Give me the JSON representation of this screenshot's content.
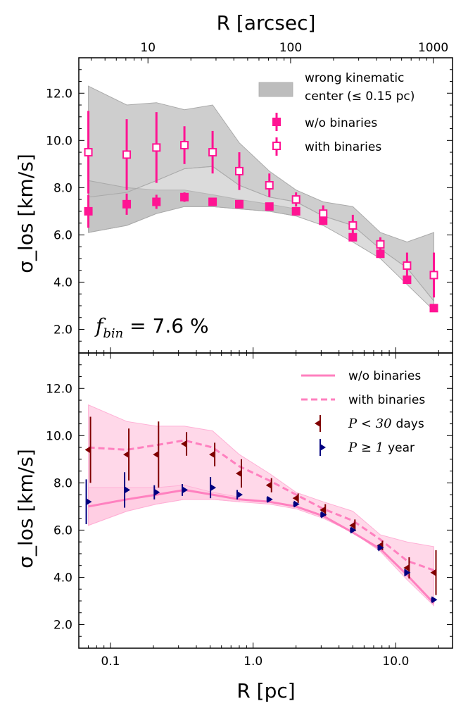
{
  "colors": {
    "magenta": "#ff1493",
    "pink_line": "#ff80bf",
    "pink_band": "#ffc8e0",
    "gray_band": "#bdbdbd",
    "dark_red": "#800000",
    "navy": "#000080"
  },
  "chart_data": [
    {
      "type": "scatter",
      "panel": "top",
      "xscale": "log",
      "xlim": [
        0.06,
        25
      ],
      "ylim": [
        1.0,
        13.5
      ],
      "ylabel": "σ_los [km/s]",
      "yticks": [
        2.0,
        4.0,
        6.0,
        8.0,
        10.0,
        12.0
      ],
      "top_axis": {
        "label": "R [arcsec]",
        "ticks": [
          10,
          100,
          1000
        ],
        "arcsec_per_pc": 54.6
      },
      "annotation": {
        "symbol": "f",
        "subscript": "bin",
        "text": " = 7.6 %"
      },
      "legend": {
        "band_label_line1": "wrong kinematic",
        "band_label_line2": "center (≤ 0.15 pc)",
        "filled_label": "w/o binaries",
        "open_label": "with binaries"
      },
      "band_upper": {
        "x": [
          0.07,
          0.13,
          0.21,
          0.33,
          0.52,
          0.8,
          1.3,
          2.0,
          3.1,
          5.0,
          7.8,
          12.0,
          18.5
        ],
        "y": [
          12.3,
          11.5,
          11.6,
          11.3,
          11.5,
          9.9,
          8.7,
          7.9,
          7.4,
          7.2,
          6.1,
          5.7,
          6.1
        ]
      },
      "band_middle": {
        "x": [
          0.07,
          0.13,
          0.21,
          0.33,
          0.52,
          0.8,
          1.3,
          2.0,
          3.1,
          5.0,
          7.8,
          12.0,
          18.5
        ],
        "y": [
          7.6,
          7.8,
          8.3,
          8.8,
          8.9,
          8.1,
          7.6,
          7.4,
          6.8,
          6.4,
          5.4,
          4.6,
          3.2
        ]
      },
      "band_lower": {
        "x": [
          0.07,
          0.13,
          0.21,
          0.33,
          0.52,
          0.8,
          1.3,
          2.0,
          3.1,
          5.0,
          7.8,
          12.0,
          18.5
        ],
        "y": [
          6.1,
          6.4,
          6.9,
          7.2,
          7.2,
          7.1,
          7.0,
          6.8,
          6.4,
          5.7,
          5.0,
          3.9,
          2.8
        ]
      },
      "band_inner_top": {
        "x": [
          0.07,
          0.13,
          0.21,
          0.33,
          0.52,
          0.8,
          1.3,
          2.0
        ],
        "y": [
          8.3,
          8.0,
          7.9,
          7.9,
          7.7,
          7.5,
          7.3,
          7.1
        ]
      },
      "series": [
        {
          "name": "w/o binaries",
          "marker": "filled-square",
          "x": [
            0.07,
            0.13,
            0.21,
            0.33,
            0.52,
            0.8,
            1.3,
            2.0,
            3.1,
            5.0,
            7.8,
            12.0,
            18.5
          ],
          "y": [
            7.0,
            7.3,
            7.4,
            7.6,
            7.4,
            7.3,
            7.2,
            7.0,
            6.6,
            5.9,
            5.2,
            4.1,
            2.9
          ],
          "err": [
            0.7,
            0.45,
            0.3,
            0.2,
            0.1,
            0.1,
            0.1,
            0.1,
            0.15,
            0.15,
            0.15,
            0.15,
            0.1
          ]
        },
        {
          "name": "with binaries",
          "marker": "open-square",
          "x": [
            0.07,
            0.13,
            0.21,
            0.33,
            0.52,
            0.8,
            1.3,
            2.0,
            3.1,
            5.0,
            7.8,
            12.0,
            18.5
          ],
          "y": [
            9.5,
            9.4,
            9.7,
            9.8,
            9.5,
            8.7,
            8.1,
            7.5,
            6.9,
            6.4,
            5.6,
            4.7,
            4.3
          ],
          "err": [
            1.75,
            1.5,
            1.5,
            0.8,
            0.9,
            0.8,
            0.5,
            0.3,
            0.35,
            0.45,
            0.3,
            0.55,
            0.95
          ]
        }
      ]
    },
    {
      "type": "line",
      "panel": "bottom",
      "xscale": "log",
      "xlim": [
        0.06,
        25
      ],
      "ylim": [
        1.0,
        13.5
      ],
      "xlabel": "R [pc]",
      "ylabel": "σ_los [km/s]",
      "xticks": [
        "0.1",
        "1.0",
        "10.0"
      ],
      "yticks": [
        2.0,
        4.0,
        6.0,
        8.0,
        10.0,
        12.0
      ],
      "legend": {
        "solid_label": "w/o binaries",
        "dashed_label": "with binaries",
        "red_label_symbol": "P < 30",
        "red_label_text": "days",
        "blue_label_symbol": "P ≥ 1",
        "blue_label_text": "year"
      },
      "band_upper": {
        "x": [
          0.07,
          0.13,
          0.21,
          0.33,
          0.52,
          0.8,
          1.3,
          2.0,
          3.1,
          5.0,
          7.8,
          12.0,
          18.5
        ],
        "y": [
          11.3,
          10.6,
          10.4,
          10.4,
          10.2,
          9.2,
          8.4,
          7.6,
          7.2,
          6.8,
          5.8,
          5.5,
          5.3
        ]
      },
      "band_lower": {
        "x": [
          0.07,
          0.13,
          0.21,
          0.33,
          0.52,
          0.8,
          1.3,
          2.0,
          3.1,
          5.0,
          7.8,
          12.0,
          18.5
        ],
        "y": [
          6.2,
          6.8,
          7.1,
          7.3,
          7.3,
          7.2,
          7.1,
          6.9,
          6.5,
          5.9,
          5.1,
          3.9,
          2.8
        ]
      },
      "band_inner_top": {
        "x": [
          0.07,
          0.13,
          0.21,
          0.33,
          0.52,
          0.8
        ],
        "y": [
          7.8,
          7.8,
          7.8,
          7.9,
          7.6,
          7.4
        ]
      },
      "series": [
        {
          "name": "w/o binaries",
          "style": "solid",
          "x": [
            0.07,
            0.13,
            0.21,
            0.33,
            0.52,
            0.8,
            1.3,
            2.0,
            3.1,
            5.0,
            7.8,
            12.0,
            18.5
          ],
          "y": [
            7.0,
            7.3,
            7.5,
            7.7,
            7.5,
            7.3,
            7.2,
            7.0,
            6.6,
            5.9,
            5.2,
            4.1,
            2.9
          ]
        },
        {
          "name": "with binaries",
          "style": "dashed",
          "x": [
            0.07,
            0.13,
            0.21,
            0.33,
            0.52,
            0.8,
            1.3,
            2.0,
            3.1,
            5.0,
            7.8,
            12.0,
            18.5
          ],
          "y": [
            9.5,
            9.4,
            9.6,
            9.8,
            9.5,
            8.7,
            8.1,
            7.5,
            6.9,
            6.4,
            5.6,
            4.7,
            4.3
          ]
        },
        {
          "name": "P < 30 days",
          "marker": "left-triangle",
          "x": [
            0.07,
            0.13,
            0.21,
            0.33,
            0.52,
            0.8,
            1.3,
            2.0,
            3.1,
            5.0,
            7.8,
            12.0,
            18.5
          ],
          "y": [
            9.4,
            9.2,
            9.2,
            9.65,
            9.2,
            8.4,
            7.9,
            7.35,
            6.85,
            6.2,
            5.35,
            4.4,
            4.2
          ],
          "err": [
            1.4,
            1.1,
            1.4,
            0.5,
            0.5,
            0.6,
            0.3,
            0.2,
            0.25,
            0.25,
            0.2,
            0.45,
            0.95
          ]
        },
        {
          "name": "P ≥ 1 year",
          "marker": "right-triangle",
          "x": [
            0.07,
            0.13,
            0.21,
            0.33,
            0.52,
            0.8,
            1.3,
            2.0,
            3.1,
            5.0,
            7.8,
            12.0,
            18.5
          ],
          "y": [
            7.2,
            7.7,
            7.6,
            7.7,
            7.8,
            7.5,
            7.3,
            7.1,
            6.65,
            6.0,
            5.25,
            4.2,
            3.05
          ],
          "err": [
            0.95,
            0.75,
            0.3,
            0.25,
            0.45,
            0.2,
            0.1,
            0.1,
            0.1,
            0.1,
            0.1,
            0.15,
            0.1
          ]
        }
      ]
    }
  ]
}
